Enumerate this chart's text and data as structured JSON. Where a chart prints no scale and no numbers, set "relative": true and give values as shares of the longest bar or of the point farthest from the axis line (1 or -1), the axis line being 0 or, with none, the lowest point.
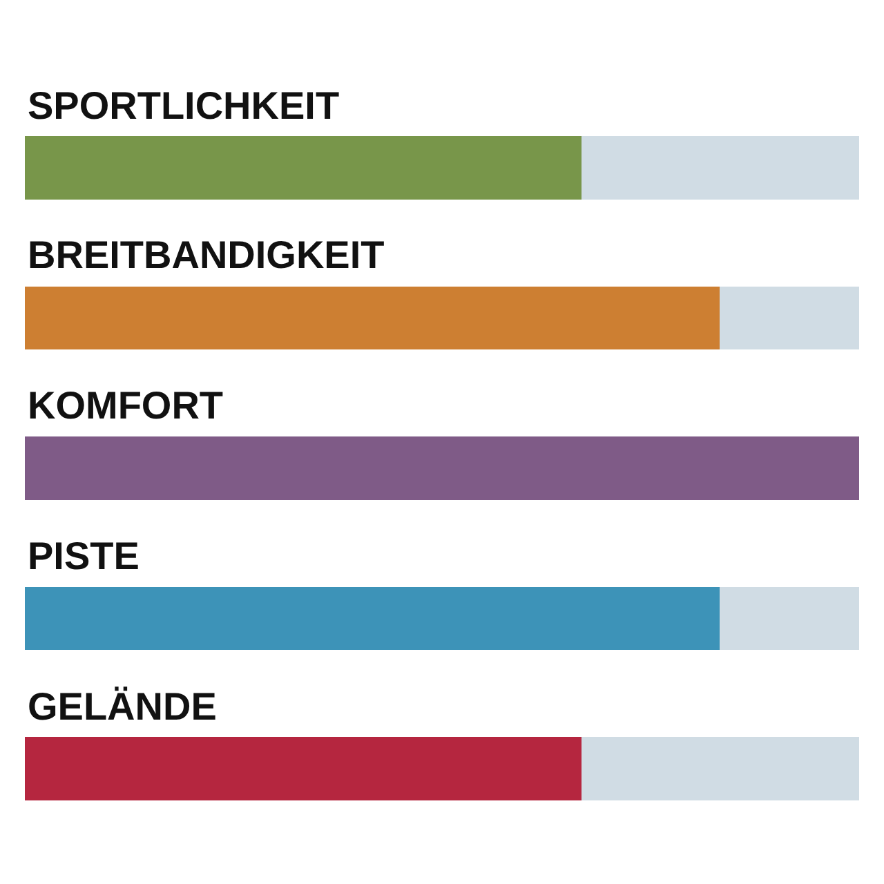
{
  "chart_data": {
    "type": "bar",
    "orientation": "horizontal",
    "stacked": true,
    "relative": true,
    "categories": [
      "SPORTLICHKEIT",
      "BREITBANDIGKEIT",
      "KOMFORT",
      "PISTE",
      "GELÄNDE"
    ],
    "series": [
      {
        "colors": [
          "#78964a",
          "#cd7f32",
          "#7f5b87",
          "#3d93b8",
          "#b5263f"
        ],
        "values": [
          0.667,
          0.833,
          1,
          0.833,
          0.667
        ]
      },
      {
        "color": "#d0dce4",
        "values": [
          0.333,
          0.167,
          0,
          0.167,
          0.333
        ]
      }
    ]
  }
}
